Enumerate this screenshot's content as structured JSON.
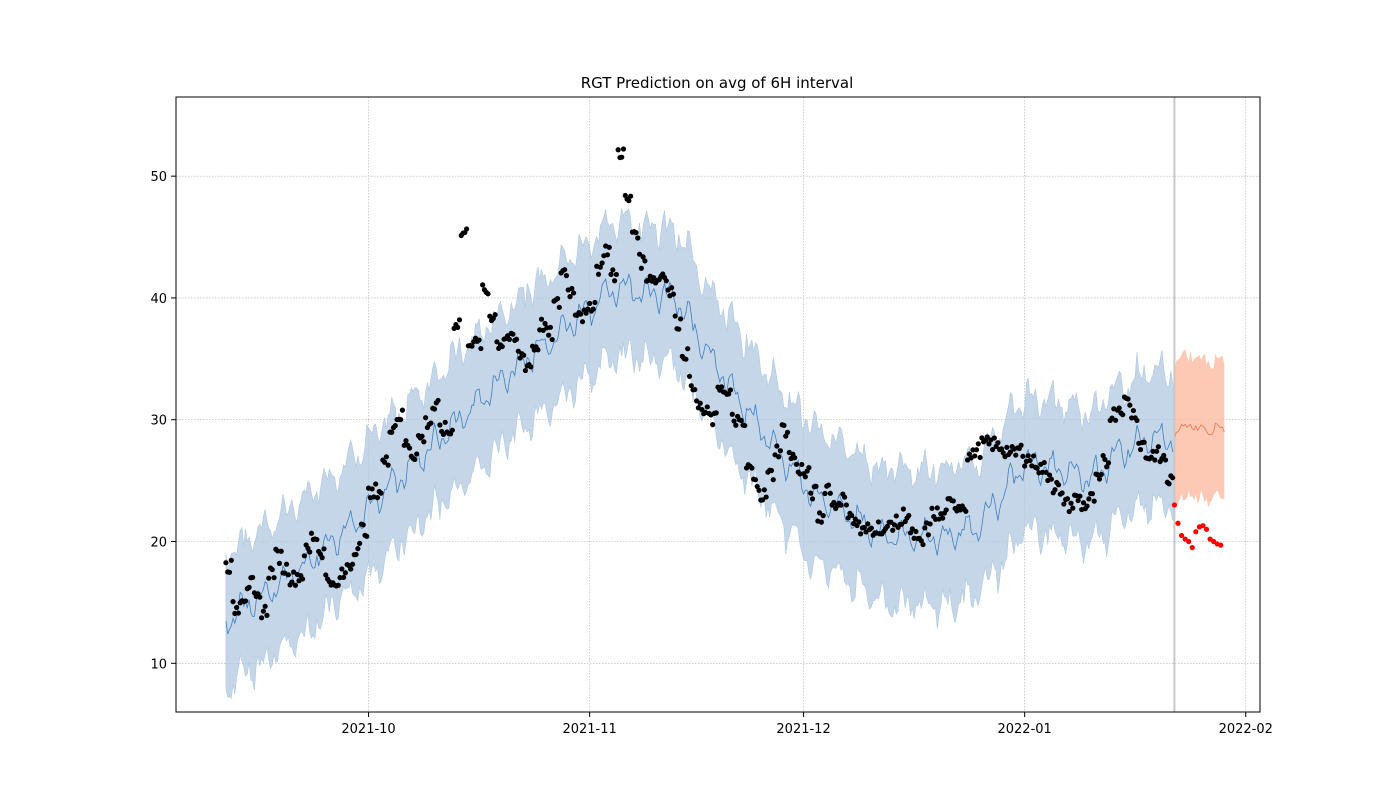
{
  "chart_data": {
    "type": "scatter",
    "title": "RGT Prediction on avg of 6H interval",
    "xlabel": "",
    "ylabel": "",
    "x_axis": {
      "type": "date",
      "range": [
        "2021-09-04",
        "2022-02-03"
      ],
      "ticks": [
        "2021-10-01",
        "2021-11-01",
        "2021-12-01",
        "2022-01-01",
        "2022-02-01"
      ],
      "tick_labels": [
        "2021-10",
        "2021-11",
        "2021-12",
        "2022-01",
        "2022-02"
      ]
    },
    "y_axis": {
      "range": [
        6,
        56.5
      ],
      "ticks": [
        10,
        20,
        30,
        40,
        50
      ]
    },
    "grid": true,
    "cutoff_date": "2022-01-22",
    "colors": {
      "band_fit": "#b0c8e0",
      "line_fit": "#3f7fbf",
      "band_forecast": "#fcbba1",
      "line_forecast": "#e8744a",
      "observed": "#000000",
      "actual_future": "#ff0000",
      "cutoff_line": "#c8c8c8"
    },
    "series": [
      {
        "role": "model_fit",
        "x_range": [
          "2021-09-11",
          "2022-01-22"
        ],
        "trend_points": [
          [
            "2021-09-11",
            13.6
          ],
          [
            "2021-09-21",
            17.5
          ],
          [
            "2021-10-01",
            22.7
          ],
          [
            "2021-10-11",
            28.5
          ],
          [
            "2021-10-21",
            34.0
          ],
          [
            "2021-10-29",
            37.8
          ],
          [
            "2021-11-05",
            41.0
          ],
          [
            "2021-11-13",
            40.0
          ],
          [
            "2021-11-22",
            31.5
          ],
          [
            "2021-12-02",
            24.0
          ],
          [
            "2021-12-12",
            20.5
          ],
          [
            "2021-12-21",
            20.3
          ],
          [
            "2021-12-26",
            21.5
          ],
          [
            "2022-01-01",
            26.5
          ],
          [
            "2022-01-10",
            25.2
          ],
          [
            "2022-01-15",
            27.5
          ],
          [
            "2022-01-18",
            28.3
          ],
          [
            "2022-01-22",
            28.4
          ]
        ],
        "band_halfwidth": 5.5
      },
      {
        "role": "forecast",
        "x_range": [
          "2022-01-22",
          "2022-01-29"
        ],
        "values": [
          [
            0,
            28.5
          ],
          [
            1,
            29.4
          ],
          [
            2,
            29.6
          ],
          [
            3,
            29.3
          ],
          [
            4,
            29.6
          ],
          [
            5,
            28.8
          ],
          [
            6,
            29.7
          ],
          [
            7,
            29.2
          ]
        ],
        "band_halfwidth": 5.7
      },
      {
        "role": "observed",
        "points": [
          [
            "2021-09-11",
            18.0
          ],
          [
            "2021-09-12",
            14.5
          ],
          [
            "2021-09-13",
            15.5
          ],
          [
            "2021-09-14",
            16.5
          ],
          [
            "2021-09-15",
            15.2
          ],
          [
            "2021-09-16",
            14.3
          ],
          [
            "2021-09-17",
            17.5
          ],
          [
            "2021-09-18",
            18.8
          ],
          [
            "2021-09-19",
            17.8
          ],
          [
            "2021-09-20",
            17.0
          ],
          [
            "2021-09-21",
            17.2
          ],
          [
            "2021-09-22",
            19.2
          ],
          [
            "2021-09-23",
            20.4
          ],
          [
            "2021-09-24",
            19.2
          ],
          [
            "2021-09-25",
            17.0
          ],
          [
            "2021-09-26",
            16.2
          ],
          [
            "2021-09-27",
            17.2
          ],
          [
            "2021-09-28",
            18.2
          ],
          [
            "2021-09-29",
            19.5
          ],
          [
            "2021-09-30",
            21.0
          ],
          [
            "2021-10-01",
            23.8
          ],
          [
            "2021-10-02",
            24.2
          ],
          [
            "2021-10-03",
            26.5
          ],
          [
            "2021-10-04",
            29.5
          ],
          [
            "2021-10-05",
            30.3
          ],
          [
            "2021-10-06",
            28.0
          ],
          [
            "2021-10-07",
            27.2
          ],
          [
            "2021-10-08",
            28.5
          ],
          [
            "2021-10-09",
            29.8
          ],
          [
            "2021-10-10",
            31.0
          ],
          [
            "2021-10-11",
            29.2
          ],
          [
            "2021-10-12",
            29.0
          ],
          [
            "2021-10-13",
            38.0
          ],
          [
            "2021-10-14",
            45.3
          ],
          [
            "2021-10-15",
            36.5
          ],
          [
            "2021-10-16",
            36.2
          ],
          [
            "2021-10-17",
            40.5
          ],
          [
            "2021-10-18",
            38.6
          ],
          [
            "2021-10-19",
            36.3
          ],
          [
            "2021-10-20",
            36.8
          ],
          [
            "2021-10-21",
            36.5
          ],
          [
            "2021-10-22",
            35.3
          ],
          [
            "2021-10-23",
            34.5
          ],
          [
            "2021-10-24",
            36.0
          ],
          [
            "2021-10-25",
            37.8
          ],
          [
            "2021-10-26",
            37.0
          ],
          [
            "2021-10-27",
            39.5
          ],
          [
            "2021-10-28",
            42.2
          ],
          [
            "2021-10-29",
            40.6
          ],
          [
            "2021-10-30",
            39.0
          ],
          [
            "2021-10-31",
            38.5
          ],
          [
            "2021-11-01",
            39.5
          ],
          [
            "2021-11-02",
            42.5
          ],
          [
            "2021-11-03",
            44.0
          ],
          [
            "2021-11-04",
            41.8
          ],
          [
            "2021-11-05",
            52.0
          ],
          [
            "2021-11-06",
            48.0
          ],
          [
            "2021-11-07",
            45.5
          ],
          [
            "2021-11-08",
            43.0
          ],
          [
            "2021-11-09",
            41.8
          ],
          [
            "2021-11-10",
            41.5
          ],
          [
            "2021-11-11",
            42.0
          ],
          [
            "2021-11-12",
            40.5
          ],
          [
            "2021-11-13",
            38.0
          ],
          [
            "2021-11-14",
            35.5
          ],
          [
            "2021-11-15",
            33.0
          ],
          [
            "2021-11-16",
            31.0
          ],
          [
            "2021-11-17",
            30.5
          ],
          [
            "2021-11-18",
            30.0
          ],
          [
            "2021-11-19",
            32.8
          ],
          [
            "2021-11-20",
            32.0
          ],
          [
            "2021-11-21",
            30.0
          ],
          [
            "2021-11-22",
            29.5
          ],
          [
            "2021-11-23",
            26.0
          ],
          [
            "2021-11-24",
            24.8
          ],
          [
            "2021-11-25",
            23.8
          ],
          [
            "2021-11-26",
            25.5
          ],
          [
            "2021-11-27",
            27.5
          ],
          [
            "2021-11-28",
            29.2
          ],
          [
            "2021-11-29",
            27.0
          ],
          [
            "2021-11-30",
            26.0
          ],
          [
            "2021-12-01",
            25.5
          ],
          [
            "2021-12-02",
            24.0
          ],
          [
            "2021-12-03",
            22.0
          ],
          [
            "2021-12-04",
            24.5
          ],
          [
            "2021-12-05",
            23.0
          ],
          [
            "2021-12-06",
            23.5
          ],
          [
            "2021-12-07",
            22.5
          ],
          [
            "2021-12-08",
            21.5
          ],
          [
            "2021-12-09",
            20.8
          ],
          [
            "2021-12-10",
            21.0
          ],
          [
            "2021-12-11",
            21.2
          ],
          [
            "2021-12-12",
            20.8
          ],
          [
            "2021-12-13",
            21.5
          ],
          [
            "2021-12-14",
            21.5
          ],
          [
            "2021-12-15",
            22.2
          ],
          [
            "2021-12-16",
            20.5
          ],
          [
            "2021-12-17",
            19.8
          ],
          [
            "2021-12-18",
            21.0
          ],
          [
            "2021-12-19",
            22.3
          ],
          [
            "2021-12-20",
            22.0
          ],
          [
            "2021-12-21",
            23.0
          ],
          [
            "2021-12-22",
            23.0
          ],
          [
            "2021-12-23",
            23.0
          ],
          [
            "2021-12-24",
            27.0
          ],
          [
            "2021-12-25",
            27.5
          ],
          [
            "2021-12-26",
            28.0
          ],
          [
            "2021-12-27",
            28.0
          ],
          [
            "2021-12-28",
            27.8
          ],
          [
            "2021-12-29",
            27.5
          ],
          [
            "2021-12-30",
            27.2
          ],
          [
            "2021-12-31",
            27.5
          ],
          [
            "2022-01-01",
            26.8
          ],
          [
            "2022-01-02",
            26.5
          ],
          [
            "2022-01-03",
            26.0
          ],
          [
            "2022-01-04",
            25.5
          ],
          [
            "2022-01-05",
            24.5
          ],
          [
            "2022-01-06",
            23.5
          ],
          [
            "2022-01-07",
            23.0
          ],
          [
            "2022-01-08",
            23.5
          ],
          [
            "2022-01-09",
            23.0
          ],
          [
            "2022-01-10",
            23.5
          ],
          [
            "2022-01-11",
            25.0
          ],
          [
            "2022-01-12",
            26.5
          ],
          [
            "2022-01-13",
            30.5
          ],
          [
            "2022-01-14",
            31.0
          ],
          [
            "2022-01-15",
            31.5
          ],
          [
            "2022-01-16",
            30.5
          ],
          [
            "2022-01-17",
            28.0
          ],
          [
            "2022-01-18",
            27.0
          ],
          [
            "2022-01-19",
            27.2
          ],
          [
            "2022-01-20",
            26.8
          ],
          [
            "2022-01-21",
            25.0
          ]
        ]
      },
      {
        "role": "actual_future",
        "points": [
          [
            "2022-01-22",
            23.0
          ],
          [
            "2022-01-22.5",
            21.5
          ],
          [
            "2022-01-23",
            20.5
          ],
          [
            "2022-01-23.5",
            20.2
          ],
          [
            "2022-01-24",
            20.0
          ],
          [
            "2022-01-24.5",
            19.5
          ],
          [
            "2022-01-25",
            20.8
          ],
          [
            "2022-01-25.5",
            21.2
          ],
          [
            "2022-01-26",
            21.3
          ],
          [
            "2022-01-26.5",
            21.0
          ],
          [
            "2022-01-27",
            20.2
          ],
          [
            "2022-01-27.5",
            20.0
          ],
          [
            "2022-01-28",
            19.8
          ],
          [
            "2022-01-28.5",
            19.7
          ]
        ]
      }
    ]
  }
}
